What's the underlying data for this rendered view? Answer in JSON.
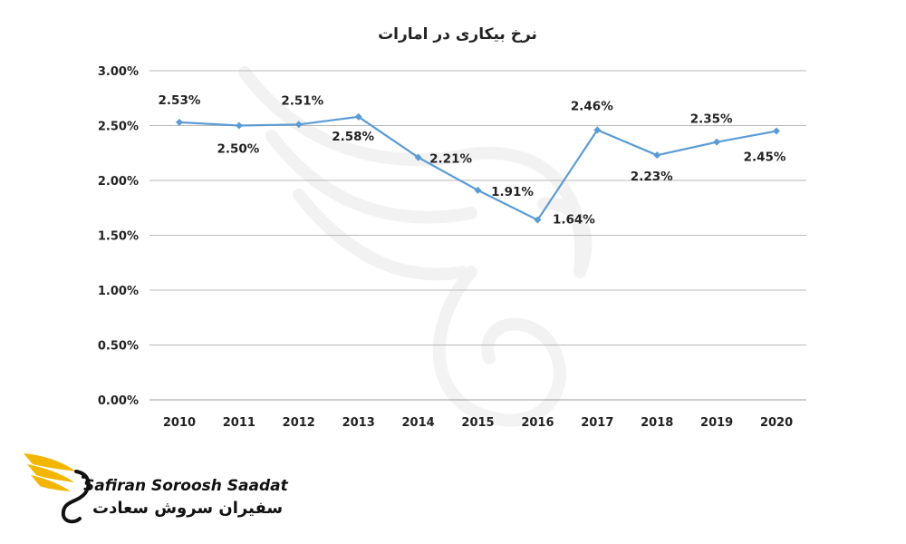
{
  "chart_data": {
    "type": "line",
    "title": "نرخ بیکاری در امارات",
    "xlabel": "",
    "ylabel": "",
    "categories": [
      "2010",
      "2011",
      "2012",
      "2013",
      "2014",
      "2015",
      "2016",
      "2017",
      "2018",
      "2019",
      "2020"
    ],
    "series": [
      {
        "values": [
          2.53,
          2.5,
          2.51,
          2.58,
          2.21,
          1.91,
          1.64,
          2.46,
          2.23,
          2.35,
          2.45
        ],
        "labels": [
          "2.53%",
          "2.50%",
          "2.51%",
          "2.58%",
          "2.21%",
          "1.91%",
          "1.64%",
          "2.46%",
          "2.23%",
          "2.35%",
          "2.45%"
        ],
        "color": "#5b9bd5",
        "marker": "diamond"
      }
    ],
    "ylim": [
      0,
      3
    ],
    "yticks": [
      0,
      0.5,
      1,
      1.5,
      2,
      2.5,
      3
    ],
    "ytick_labels": [
      "0.00%",
      "0.50%",
      "1.00%",
      "1.50%",
      "2.00%",
      "2.50%",
      "3.00%"
    ],
    "grid": true,
    "legend": "none"
  },
  "logo": {
    "latin": "Safiran Soroosh Saadat",
    "persian": "سفیران سروش سعادت",
    "colors": {
      "wing": "#f2b600",
      "text": "#111111"
    }
  },
  "watermark": "swan-logo"
}
